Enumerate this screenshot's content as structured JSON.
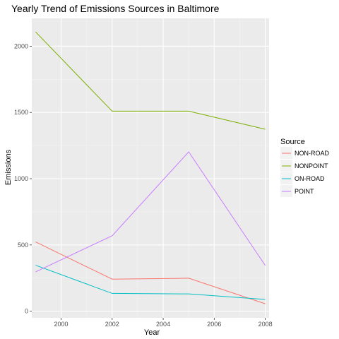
{
  "chart_data": {
    "type": "line",
    "title": "Yearly Trend of Emissions Sources in Baltimore",
    "xlabel": "Year",
    "ylabel": "Emissions",
    "x": [
      1999,
      2002,
      2005,
      2008
    ],
    "xlim": [
      1998.85,
      2008.15
    ],
    "ylim": [
      -50,
      2210
    ],
    "x_ticks": [
      2000,
      2002,
      2004,
      2006,
      2008
    ],
    "y_ticks": [
      0,
      500,
      1000,
      1500,
      2000
    ],
    "grid": true,
    "legend": {
      "title": "Source",
      "placement": "right"
    },
    "series": [
      {
        "name": "NON-ROAD",
        "color": "#F8766D",
        "values": [
          522.9,
          241.8,
          248.9,
          55.8
        ]
      },
      {
        "name": "NONPOINT",
        "color": "#7CAE00",
        "values": [
          2107.6,
          1509.5,
          1509.5,
          1373.2
        ]
      },
      {
        "name": "ON-ROAD",
        "color": "#00BFC4",
        "values": [
          346.8,
          134.3,
          130.4,
          88.3
        ]
      },
      {
        "name": "POINT",
        "color": "#C77CFF",
        "values": [
          296.8,
          569.3,
          1202.5,
          344.98
        ]
      }
    ]
  }
}
